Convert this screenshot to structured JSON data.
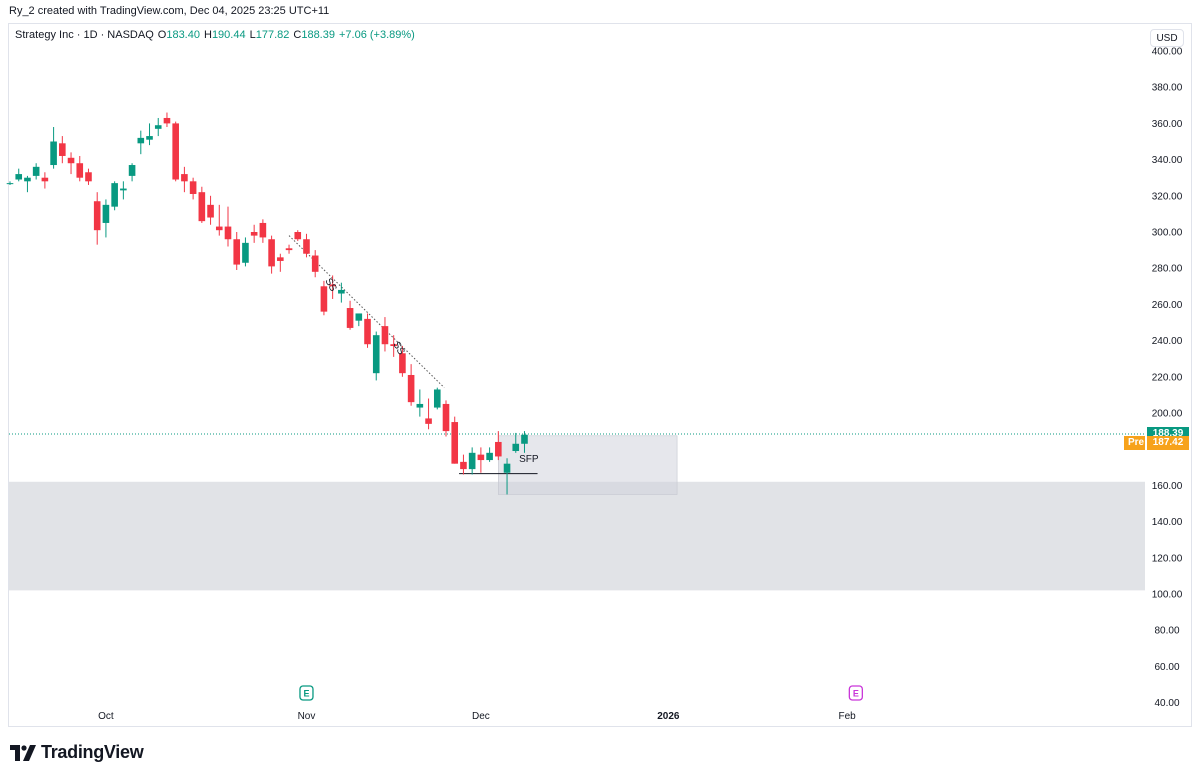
{
  "header": {
    "attribution": "Ry_2 created with TradingView.com, Dec 04, 2025 23:25 UTC+11"
  },
  "legend": {
    "symbol": "Strategy Inc · 1D · NASDAQ",
    "open_label": "O",
    "open": "183.40",
    "high_label": "H",
    "high": "190.44",
    "low_label": "L",
    "low": "177.82",
    "close_label": "C",
    "close": "188.39",
    "change": "+7.06 (+3.89%)"
  },
  "currency_button": "USD",
  "price_tags": {
    "last": {
      "value": "188.39",
      "color": "#089981"
    },
    "pre": {
      "label": "Pre",
      "value": "187.42",
      "color": "#f7a21b"
    }
  },
  "brand": {
    "name": "TradingView"
  },
  "colors": {
    "up": "#089981",
    "down": "#f23645",
    "zone": "#e1e3e7",
    "grid_border": "#e0e3eb"
  },
  "chart_data": {
    "type": "candlestick",
    "symbol": "Strategy Inc",
    "interval": "1D",
    "exchange": "NASDAQ",
    "currency": "USD",
    "ylim": [
      40,
      400
    ],
    "y_ticks": [
      "400.00",
      "380.00",
      "360.00",
      "340.00",
      "320.00",
      "300.00",
      "280.00",
      "260.00",
      "240.00",
      "220.00",
      "200.00",
      "160.00",
      "140.00",
      "120.00",
      "100.00",
      "80.00",
      "60.00",
      "40.00"
    ],
    "x_ticks": [
      {
        "label": "Oct",
        "bar": 11,
        "bold": false
      },
      {
        "label": "Nov",
        "bar": 34,
        "bold": false
      },
      {
        "label": "Dec",
        "bar": 54,
        "bold": false
      },
      {
        "label": "2026",
        "bar": 75.5,
        "bold": true
      },
      {
        "label": "Feb",
        "bar": 96,
        "bold": false
      }
    ],
    "candles": [
      [
        327,
        328,
        326,
        327
      ],
      [
        329,
        335,
        328,
        332
      ],
      [
        328,
        331,
        322,
        330
      ],
      [
        331,
        338,
        329,
        336
      ],
      [
        330,
        333,
        324,
        328
      ],
      [
        337,
        358,
        335,
        350
      ],
      [
        349,
        353,
        338,
        342
      ],
      [
        341,
        344,
        332,
        338
      ],
      [
        338,
        342,
        328,
        330
      ],
      [
        333,
        335,
        326,
        328
      ],
      [
        317,
        322,
        293,
        301
      ],
      [
        305,
        318,
        297,
        315
      ],
      [
        314,
        328,
        312,
        327
      ],
      [
        323,
        328,
        318,
        324
      ],
      [
        331,
        338,
        328,
        337
      ],
      [
        349,
        356,
        343,
        352
      ],
      [
        351,
        360,
        348,
        353
      ],
      [
        357,
        363,
        353,
        359
      ],
      [
        363,
        366,
        358,
        360
      ],
      [
        360,
        361,
        328,
        329
      ],
      [
        332,
        336,
        322,
        328
      ],
      [
        328,
        330,
        318,
        321
      ],
      [
        322,
        325,
        305,
        306
      ],
      [
        315,
        320,
        304,
        308
      ],
      [
        303,
        315,
        298,
        301
      ],
      [
        303,
        314,
        292,
        296
      ],
      [
        296,
        300,
        279,
        282
      ],
      [
        283,
        297,
        281,
        294
      ],
      [
        300,
        304,
        294,
        298
      ],
      [
        305,
        307,
        294,
        297
      ],
      [
        296,
        298,
        277,
        281
      ],
      [
        286,
        288,
        278,
        284
      ],
      [
        291,
        293,
        288,
        290
      ],
      [
        300,
        301,
        295,
        296
      ],
      [
        296,
        299,
        286,
        288
      ],
      [
        287,
        290,
        275,
        278
      ],
      [
        270,
        273,
        254,
        256
      ],
      [
        271,
        276,
        263,
        270
      ],
      [
        266,
        272,
        261,
        268
      ],
      [
        258,
        262,
        246,
        247
      ],
      [
        251,
        253,
        248,
        255
      ],
      [
        252,
        255,
        236,
        238
      ],
      [
        222,
        245,
        218,
        243
      ],
      [
        248,
        253,
        234,
        238
      ],
      [
        238,
        243,
        231,
        237
      ],
      [
        233,
        237,
        220,
        222
      ],
      [
        221,
        227,
        204,
        206
      ],
      [
        203,
        213,
        198,
        205
      ],
      [
        197,
        208,
        191,
        194
      ],
      [
        203,
        214,
        202,
        213
      ],
      [
        205,
        207,
        187,
        190
      ],
      [
        195,
        198,
        172,
        172
      ],
      [
        173,
        177,
        166,
        169
      ],
      [
        169,
        181,
        166,
        178
      ],
      [
        177,
        181,
        167,
        174
      ],
      [
        174,
        181,
        173,
        178
      ],
      [
        184,
        190,
        174,
        176
      ],
      [
        167,
        175,
        155,
        172
      ],
      [
        179,
        189,
        178,
        183
      ],
      [
        183,
        190,
        178,
        188
      ]
    ],
    "zones": [
      {
        "from_bar": "start",
        "to_bar": "axis",
        "top": 162,
        "bottom": 102
      },
      {
        "from_bar": 56,
        "to_bar": 76.5,
        "top": 187.4,
        "bottom": 155
      }
    ],
    "dotted_price_line": 188.39,
    "trendline": {
      "from": [
        32,
        298
      ],
      "to": [
        49.8,
        214
      ]
    },
    "annotations": [
      {
        "text": "SS",
        "bar": 36.5,
        "price": 270,
        "rotate": 60
      },
      {
        "text": "SS",
        "bar": 44.3,
        "price": 235,
        "rotate": 60
      },
      {
        "text": "SFP",
        "bar": 59.5,
        "price": 173,
        "rotate": 0
      }
    ],
    "sfp_line": {
      "from_bar": 51.5,
      "to_bar": 60.5,
      "price": 166.5
    },
    "event_markers": [
      {
        "symbol": "E",
        "bar": 34,
        "color": "#089981"
      },
      {
        "symbol": "E",
        "bar": 97,
        "color": "#c936d9"
      }
    ]
  }
}
